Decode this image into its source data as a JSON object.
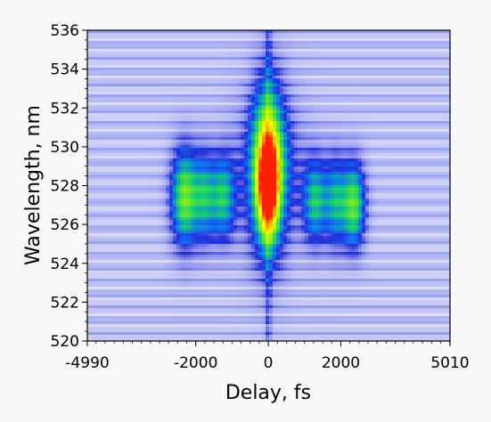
{
  "chart_data": {
    "type": "heatmap",
    "title": "",
    "xlabel": "Delay, fs",
    "ylabel": "Wavelength, nm",
    "xlim": [
      -4990,
      5010
    ],
    "ylim": [
      520,
      536
    ],
    "x_ticks": [
      -4990,
      -2000,
      0,
      2000,
      5010
    ],
    "y_ticks": [
      520,
      522,
      524,
      526,
      528,
      530,
      532,
      534,
      536
    ],
    "colormap": [
      "#eef0ff",
      "#c9ccf6",
      "#8e93ec",
      "#1f2bd8",
      "#0f76f2",
      "#13d070",
      "#9cf00e",
      "#ffff00",
      "#ff9800",
      "#ff2000"
    ],
    "grid": false,
    "legend": "none",
    "features": [
      {
        "name": "central-peak",
        "delay_fs": 0,
        "wavelength_nm": 528.2,
        "sigma_fs": 170,
        "sigma_nm": 1.5,
        "intensity": 1.0
      },
      {
        "name": "central-core",
        "delay_fs": 0,
        "wavelength_nm": 529.0,
        "sigma_fs": 300,
        "sigma_nm": 2.9,
        "intensity": 0.45
      },
      {
        "name": "central-base",
        "delay_fs": 0,
        "wavelength_nm": 528.5,
        "sigma_fs": 650,
        "sigma_nm": 2.7,
        "intensity": 0.17
      },
      {
        "name": "left-sideband",
        "delay_fs": -2300,
        "wavelength_nm": 527.4,
        "sigma_fs": 260,
        "sigma_nm": 1.7,
        "intensity": 0.42
      },
      {
        "name": "right-sideband",
        "delay_fs": 2350,
        "wavelength_nm": 527.0,
        "sigma_fs": 220,
        "sigma_nm": 1.5,
        "intensity": 0.4
      },
      {
        "name": "left-inner-band",
        "delay_fs": -1250,
        "wavelength_nm": 527.4,
        "sigma_fs": 230,
        "sigma_nm": 1.5,
        "intensity": 0.3
      },
      {
        "name": "right-inner-band",
        "delay_fs": 1300,
        "wavelength_nm": 527.2,
        "sigma_fs": 230,
        "sigma_nm": 1.5,
        "intensity": 0.3
      },
      {
        "name": "left-mid-band",
        "delay_fs": -1750,
        "wavelength_nm": 527.4,
        "sigma_fs": 200,
        "sigma_nm": 1.6,
        "intensity": 0.26
      },
      {
        "name": "right-mid-band",
        "delay_fs": 1850,
        "wavelength_nm": 527.2,
        "sigma_fs": 200,
        "sigma_nm": 1.6,
        "intensity": 0.26
      }
    ]
  }
}
